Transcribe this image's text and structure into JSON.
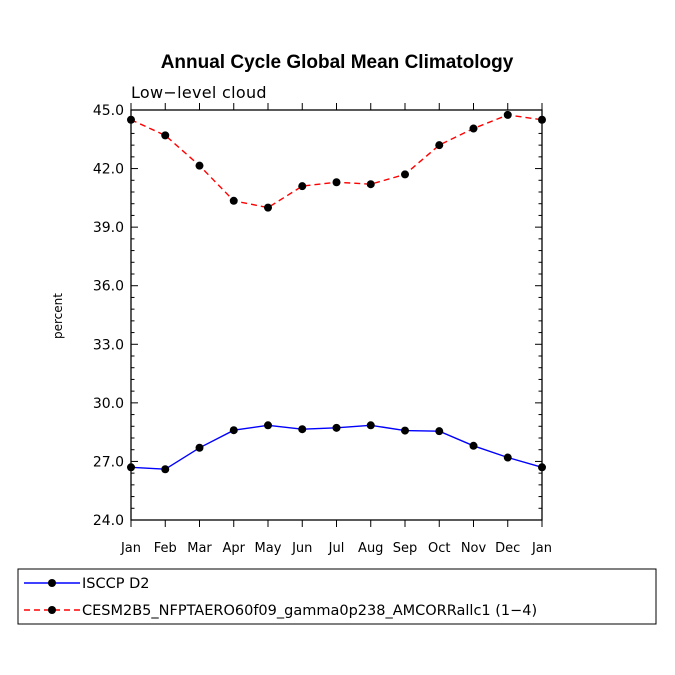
{
  "chart_data": {
    "type": "line",
    "title": "Annual Cycle Global Mean Climatology",
    "subtitle": "Low−level cloud",
    "xlabel": "",
    "ylabel": "percent",
    "categories": [
      "Jan",
      "Feb",
      "Mar",
      "Apr",
      "May",
      "Jun",
      "Jul",
      "Aug",
      "Sep",
      "Oct",
      "Nov",
      "Dec",
      "Jan"
    ],
    "ylim": [
      24.0,
      45.0
    ],
    "y_ticks": [
      "24.0",
      "27.0",
      "30.0",
      "33.0",
      "36.0",
      "39.0",
      "42.0",
      "45.0"
    ],
    "y_tick_values": [
      24.0,
      27.0,
      30.0,
      33.0,
      36.0,
      39.0,
      42.0,
      45.0
    ],
    "grid": false,
    "legend_position": "bottom",
    "series": [
      {
        "name": "ISCCP D2",
        "color": "#0000ff",
        "line_style": "solid",
        "marker": "filled-circle",
        "marker_color": "#000000",
        "values": [
          26.7,
          26.6,
          27.7,
          28.6,
          28.85,
          28.65,
          28.72,
          28.85,
          28.58,
          28.55,
          27.8,
          27.2,
          26.7
        ]
      },
      {
        "name": "CESM2B5_NFPTAERO60f09_gamma0p238_AMCORRallc1 (1−4)",
        "color": "#ff0000",
        "line_style": "dashed",
        "marker": "filled-circle",
        "marker_color": "#000000",
        "values": [
          44.5,
          43.7,
          42.15,
          40.35,
          40.0,
          41.1,
          41.3,
          41.2,
          41.7,
          43.2,
          44.05,
          44.75,
          44.5
        ]
      }
    ]
  }
}
